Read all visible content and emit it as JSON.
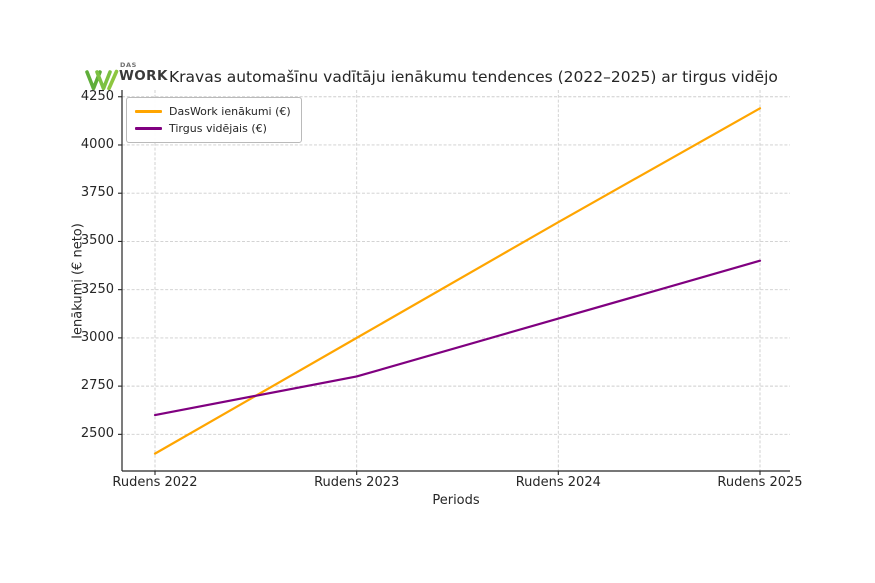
{
  "header": {
    "logo_das": "DAS",
    "logo_work": "WORK",
    "title": "Kravas automašīnu vadītāju ienākumu tendences (2022–2025) ar tirgus vidējo"
  },
  "chart_data": {
    "type": "line",
    "categories": [
      "Rudens 2022",
      "Rudens 2023",
      "Rudens 2024",
      "Rudens 2025"
    ],
    "series": [
      {
        "name": "DasWork ienākumi (€)",
        "color": "#FFA500",
        "values": [
          2400,
          3000,
          3600,
          4190
        ]
      },
      {
        "name": "Tirgus vidējais (€)",
        "color": "#800080",
        "values": [
          2600,
          2800,
          3100,
          3400
        ]
      }
    ],
    "title": "Kravas automašīnu vadītāju ienākumu tendences (2022–2025) ar tirgus vidējo",
    "xlabel": "Periods",
    "ylabel": "Ienākumi (€ neto)",
    "yticks": [
      2500,
      2750,
      3000,
      3250,
      3500,
      3750,
      4000,
      4250
    ],
    "ylim": [
      2310,
      4285
    ],
    "grid": true,
    "grid_style": "dashed",
    "legend_position": "upper-left"
  },
  "colors": {
    "grid": "#cdcdcd",
    "axis": "#262626",
    "logo_green_dark": "#5fae3a",
    "logo_green": "#7cc142",
    "logo_green_light": "#8dc63f"
  }
}
